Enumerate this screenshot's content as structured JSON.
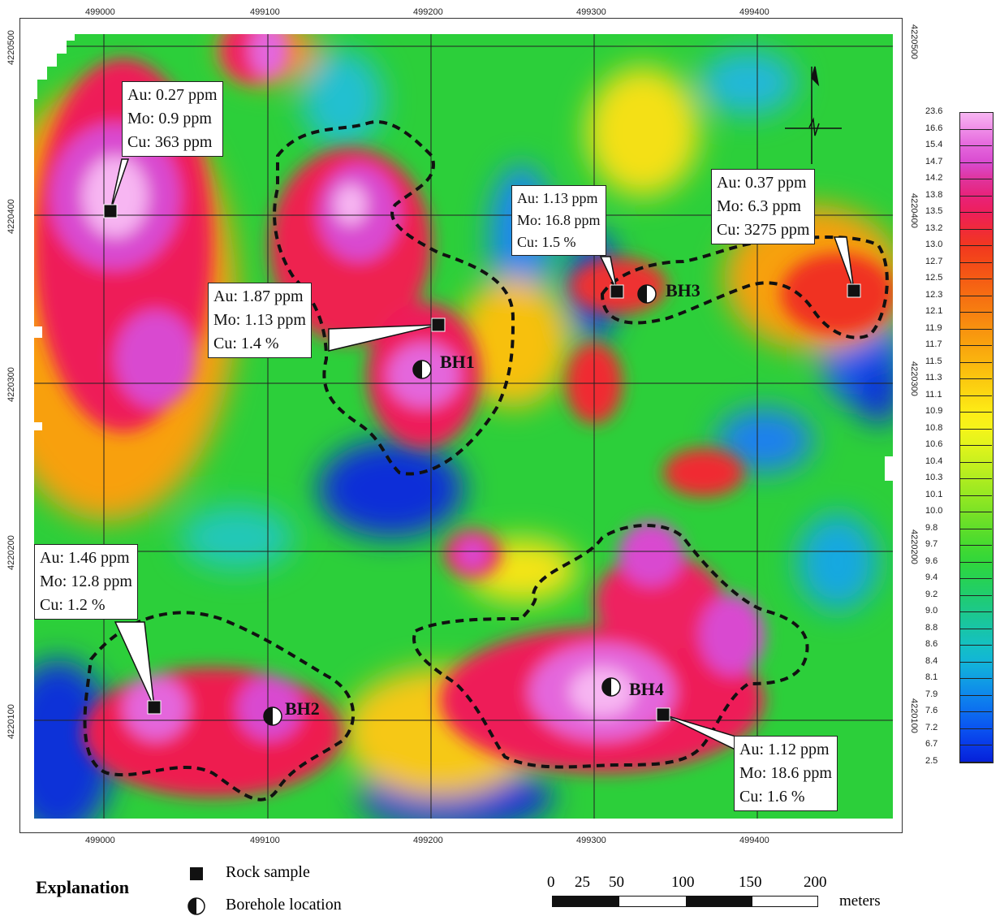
{
  "map": {
    "x_ticks_top": [
      "499000",
      "499100",
      "499200",
      "499300",
      "499400"
    ],
    "x_ticks_bottom": [
      "499000",
      "499100",
      "499200",
      "499300",
      "499400"
    ],
    "y_ticks_left": [
      "4220500",
      "4220400",
      "4220300",
      "4220200",
      "4220100"
    ],
    "y_ticks_right": [
      "4220500",
      "4220400",
      "4220300",
      "4220200",
      "4220100"
    ]
  },
  "samples": [
    {
      "au": "Au: 0.27 ppm",
      "mo": "Mo: 0.9 ppm",
      "cu": "Cu: 363 ppm"
    },
    {
      "au": "Au: 1.87 ppm",
      "mo": "Mo: 1.13 ppm",
      "cu": "Cu: 1.4 %"
    },
    {
      "au": "Au: 1.13 ppm",
      "mo": "Mo: 16.8 ppm",
      "cu": "Cu: 1.5 %"
    },
    {
      "au": "Au: 0.37 ppm",
      "mo": "Mo: 6.3 ppm",
      "cu": "Cu: 3275 ppm"
    },
    {
      "au": "Au: 1.46 ppm",
      "mo": "Mo: 12.8 ppm",
      "cu": "Cu: 1.2 %"
    },
    {
      "au": "Au: 1.12 ppm",
      "mo": "Mo: 18.6 ppm",
      "cu": "Cu: 1.6 %"
    }
  ],
  "boreholes": [
    "BH1",
    "BH2",
    "BH3",
    "BH4"
  ],
  "colorbar": {
    "labels": [
      "23.6",
      "16.6",
      "15.4",
      "14.7",
      "14.2",
      "13.8",
      "13.5",
      "13.2",
      "13.0",
      "12.7",
      "12.5",
      "12.3",
      "12.1",
      "11.9",
      "11.7",
      "11.5",
      "11.3",
      "11.1",
      "10.9",
      "10.8",
      "10.6",
      "10.4",
      "10.3",
      "10.1",
      "10.0",
      "9.8",
      "9.7",
      "9.6",
      "9.4",
      "9.2",
      "9.0",
      "8.8",
      "8.6",
      "8.4",
      "8.1",
      "7.9",
      "7.6",
      "7.2",
      "6.7",
      "2.5"
    ],
    "colors": [
      "#f7b6f2",
      "#ef8ce8",
      "#e466dc",
      "#d94ad0",
      "#e0339a",
      "#e8227a",
      "#ee1f5a",
      "#f02a3a",
      "#f2381f",
      "#f44a18",
      "#f55c14",
      "#f66e12",
      "#f78010",
      "#f8920f",
      "#f9a40e",
      "#fab60e",
      "#fbc80f",
      "#fcda12",
      "#fded16",
      "#f4f41a",
      "#e0f41c",
      "#c8f01e",
      "#aeec20",
      "#94e822",
      "#7ae226",
      "#5ede2a",
      "#44da30",
      "#30d63c",
      "#26d254",
      "#20cc70",
      "#1cc88c",
      "#18c4a8",
      "#14c0c4",
      "#12b4d8",
      "#109ee4",
      "#0e86ec",
      "#0c6cf0",
      "#0a52f0",
      "#0838e8",
      "#0620d8"
    ]
  },
  "explanation": {
    "title": "Explanation",
    "rock_sample": "Rock sample",
    "borehole": "Borehole location"
  },
  "scale": {
    "ticks": [
      "0",
      "25",
      "50",
      "100",
      "150",
      "200"
    ],
    "unit": "meters"
  }
}
